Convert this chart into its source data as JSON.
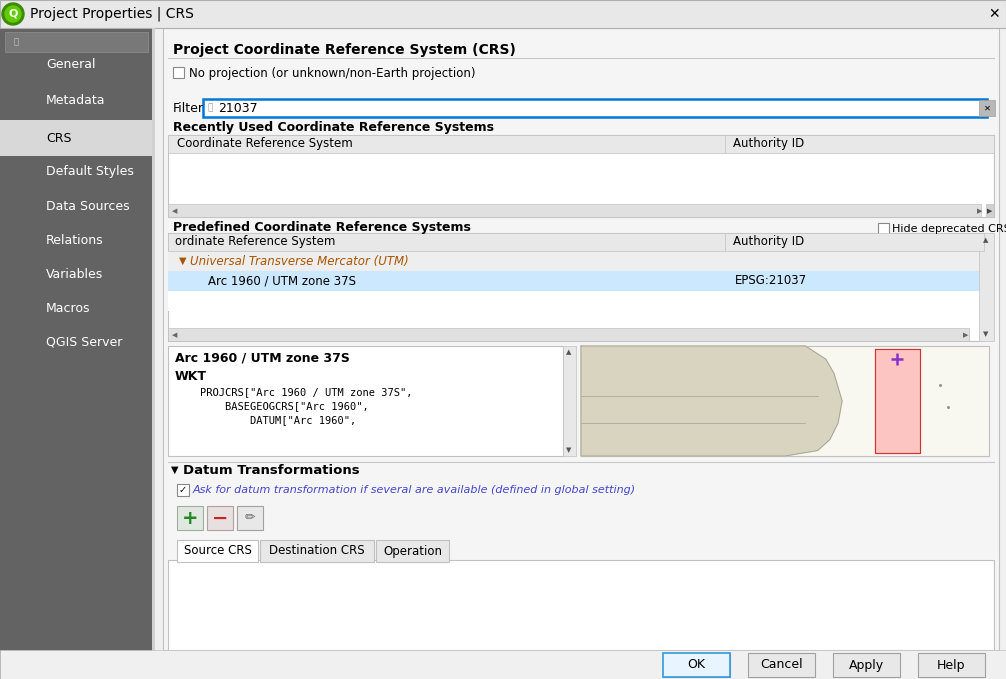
{
  "title": "Project Properties | CRS",
  "bg_color": "#f0f0f0",
  "sidebar_bg": "#636363",
  "sidebar_selected_bg": "#e8e8e8",
  "sidebar_text_color": "#ffffff",
  "sidebar_selected_text_color": "#000000",
  "sidebar_items": [
    "General",
    "Metadata",
    "CRS",
    "Default Styles",
    "Data Sources",
    "Relations",
    "Variables",
    "Macros",
    "QGIS Server"
  ],
  "sidebar_selected": 2,
  "section1_title": "Project Coordinate Reference System (CRS)",
  "checkbox_label": "No projection (or unknown/non-Earth projection)",
  "filter_label": "Filter",
  "filter_value": "21037",
  "recently_used_title": "Recently Used Coordinate Reference Systems",
  "col1_header": "Coordinate Reference System",
  "col2_header": "Authority ID",
  "predefined_title": "Predefined Coordinate Reference Systems",
  "hide_deprecated_label": "Hide deprecated CRSs",
  "predefined_col1": "ordinate Reference System",
  "predefined_col2": "Authority ID",
  "utm_group": "Universal Transverse Mercator (UTM)",
  "crs_name": "Arc 1960 / UTM zone 37S",
  "crs_authority": "EPSG:21037",
  "detail_title": "Arc 1960 / UTM zone 37S",
  "wkt_label": "WKT",
  "wkt_lines": [
    "    PROJCRS[\"Arc 1960 / UTM zone 37S\",",
    "        BASEGEOGCRS[\"Arc 1960\",",
    "            DATUM[\"Arc 1960\","
  ],
  "datum_title": "Datum Transformations",
  "datum_checkbox": "Ask for datum transformation if several are available (defined in global setting)",
  "tab1": "Source CRS",
  "tab2": "Destination CRS",
  "tab3": "Operation",
  "btn_ok": "OK",
  "btn_cancel": "Cancel",
  "btn_apply": "Apply",
  "btn_help": "Help",
  "white": "#ffffff",
  "border_color": "#c0c0c0",
  "highlight_blue": "#0078d7",
  "table_header_bg": "#e8e8e8",
  "selected_row_bg": "#cce8ff",
  "orange_text": "#aa5500",
  "datum_checkbox_color": "#4444cc"
}
